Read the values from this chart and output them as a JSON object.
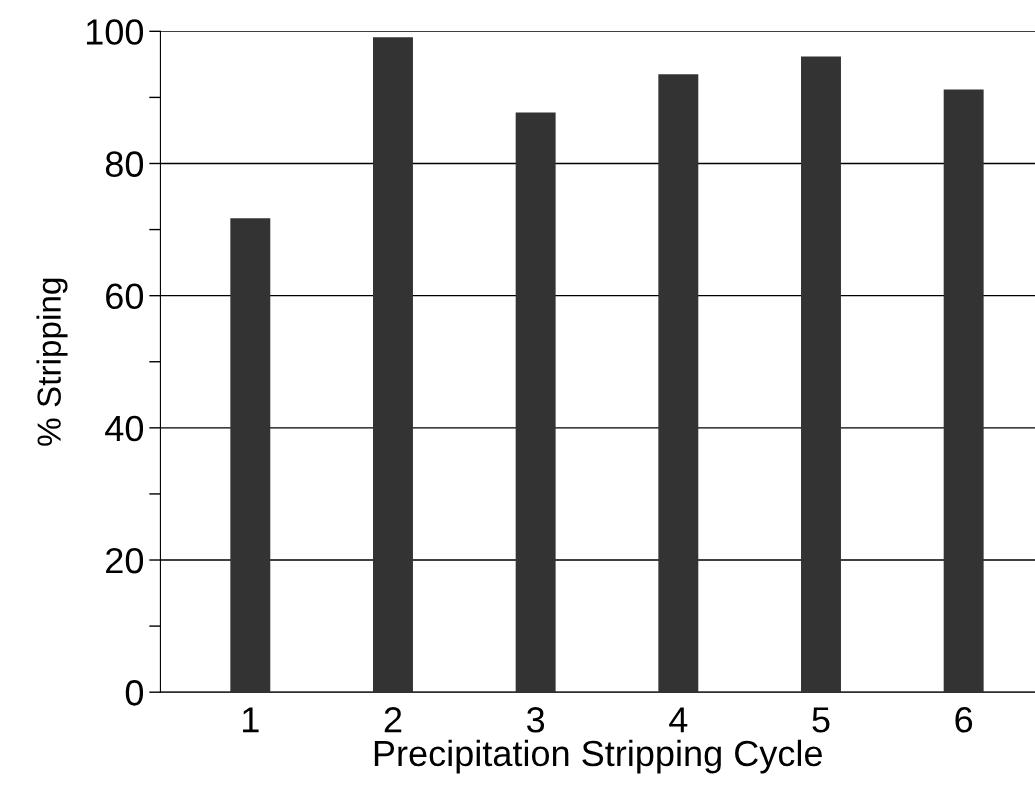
{
  "chart_data": {
    "type": "bar",
    "xlabel": "Precipitation Stripping Cycle",
    "ylabel": "% Stripping",
    "categories": [
      "1",
      "2",
      "3",
      "4",
      "5",
      "6"
    ],
    "values": [
      71.7,
      99.1,
      87.7,
      93.5,
      96.2,
      91.2
    ],
    "color": "#333333",
    "ylim": [
      0,
      100
    ],
    "yticks": [
      0,
      {
        "value": 10,
        "label": null
      },
      20,
      {
        "value": 30,
        "label": null
      },
      40,
      {
        "value": 50,
        "label": null
      },
      60,
      {
        "value": 70,
        "label": null
      },
      80,
      {
        "value": 90,
        "label": null
      },
      100
    ],
    "grid": "y",
    "legend": false
  }
}
